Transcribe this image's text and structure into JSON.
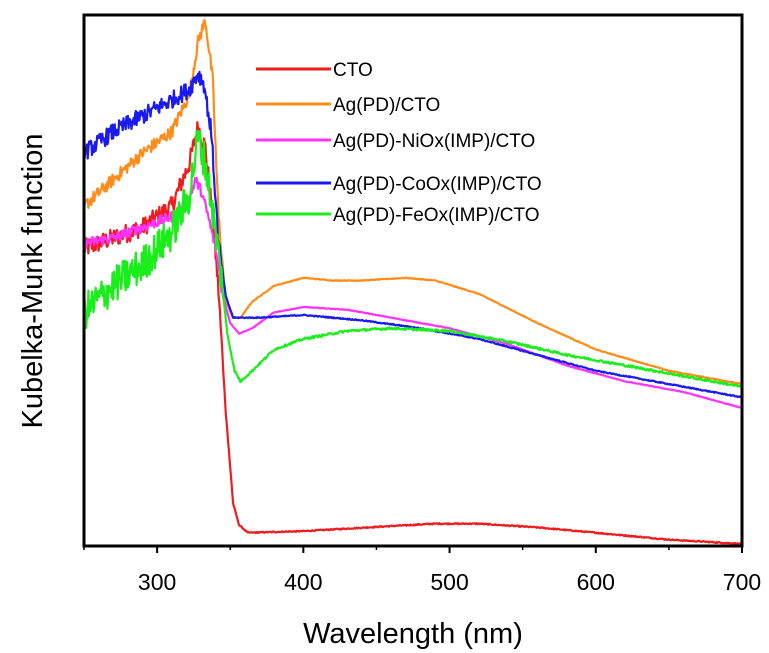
{
  "chart_data": {
    "type": "line",
    "title": "",
    "xlabel": "Wavelength (nm)",
    "ylabel": "Kubelka-Munk function",
    "xlim": [
      250,
      700
    ],
    "ylim": [
      0,
      1
    ],
    "x_ticks": [
      300,
      400,
      500,
      600,
      700
    ],
    "x_tick_labels": [
      "300",
      "400",
      "500",
      "600",
      "700"
    ],
    "y_tick_labels_shown": false,
    "grid": false,
    "legend_position": "top-right",
    "series": [
      {
        "name": "CTO",
        "color": "#ee1c1c",
        "noise": 0.018,
        "points": [
          [
            250,
            0.56
          ],
          [
            270,
            0.58
          ],
          [
            290,
            0.6
          ],
          [
            310,
            0.64
          ],
          [
            322,
            0.72
          ],
          [
            328,
            0.79
          ],
          [
            333,
            0.75
          ],
          [
            338,
            0.62
          ],
          [
            342,
            0.48
          ],
          [
            347,
            0.25
          ],
          [
            352,
            0.08
          ],
          [
            356,
            0.04
          ],
          [
            362,
            0.025
          ],
          [
            400,
            0.028
          ],
          [
            450,
            0.036
          ],
          [
            490,
            0.042
          ],
          [
            520,
            0.042
          ],
          [
            560,
            0.035
          ],
          [
            600,
            0.025
          ],
          [
            650,
            0.012
          ],
          [
            700,
            0.004
          ]
        ]
      },
      {
        "name": "Ag(PD)/CTO",
        "color": "#ff8c1a",
        "noise": 0.012,
        "points": [
          [
            250,
            0.64
          ],
          [
            270,
            0.69
          ],
          [
            290,
            0.74
          ],
          [
            310,
            0.78
          ],
          [
            322,
            0.85
          ],
          [
            328,
            0.95
          ],
          [
            333,
            0.99
          ],
          [
            338,
            0.88
          ],
          [
            342,
            0.62
          ],
          [
            347,
            0.46
          ],
          [
            352,
            0.43
          ],
          [
            357,
            0.43
          ],
          [
            365,
            0.46
          ],
          [
            380,
            0.49
          ],
          [
            400,
            0.505
          ],
          [
            420,
            0.5
          ],
          [
            440,
            0.5
          ],
          [
            470,
            0.505
          ],
          [
            490,
            0.5
          ],
          [
            520,
            0.475
          ],
          [
            560,
            0.42
          ],
          [
            600,
            0.37
          ],
          [
            650,
            0.33
          ],
          [
            700,
            0.305
          ]
        ]
      },
      {
        "name": "Ag(PD)-NiOx(IMP)/CTO",
        "color": "#ff33ff",
        "noise": 0.01,
        "points": [
          [
            250,
            0.57
          ],
          [
            270,
            0.58
          ],
          [
            290,
            0.6
          ],
          [
            310,
            0.62
          ],
          [
            322,
            0.65
          ],
          [
            326,
            0.69
          ],
          [
            330,
            0.67
          ],
          [
            335,
            0.62
          ],
          [
            340,
            0.56
          ],
          [
            345,
            0.47
          ],
          [
            350,
            0.42
          ],
          [
            356,
            0.4
          ],
          [
            365,
            0.41
          ],
          [
            380,
            0.44
          ],
          [
            400,
            0.45
          ],
          [
            430,
            0.445
          ],
          [
            460,
            0.43
          ],
          [
            500,
            0.41
          ],
          [
            540,
            0.38
          ],
          [
            580,
            0.34
          ],
          [
            620,
            0.31
          ],
          [
            660,
            0.29
          ],
          [
            700,
            0.26
          ]
        ]
      },
      {
        "name": "Ag(PD)-CoOx(IMP)/CTO",
        "color": "#1a1aee",
        "noise": 0.016,
        "points": [
          [
            250,
            0.74
          ],
          [
            270,
            0.78
          ],
          [
            290,
            0.81
          ],
          [
            310,
            0.84
          ],
          [
            322,
            0.86
          ],
          [
            328,
            0.89
          ],
          [
            332,
            0.87
          ],
          [
            337,
            0.78
          ],
          [
            342,
            0.57
          ],
          [
            347,
            0.47
          ],
          [
            352,
            0.43
          ],
          [
            358,
            0.43
          ],
          [
            370,
            0.43
          ],
          [
            400,
            0.435
          ],
          [
            440,
            0.425
          ],
          [
            480,
            0.41
          ],
          [
            520,
            0.39
          ],
          [
            560,
            0.36
          ],
          [
            600,
            0.33
          ],
          [
            650,
            0.305
          ],
          [
            700,
            0.28
          ]
        ]
      },
      {
        "name": "Ag(PD)-FeOx(IMP)/CTO",
        "color": "#1aee1a",
        "noise": 0.035,
        "points": [
          [
            250,
            0.44
          ],
          [
            270,
            0.49
          ],
          [
            290,
            0.53
          ],
          [
            310,
            0.59
          ],
          [
            322,
            0.66
          ],
          [
            328,
            0.77
          ],
          [
            333,
            0.72
          ],
          [
            338,
            0.63
          ],
          [
            343,
            0.53
          ],
          [
            348,
            0.4
          ],
          [
            353,
            0.33
          ],
          [
            357,
            0.31
          ],
          [
            365,
            0.33
          ],
          [
            380,
            0.37
          ],
          [
            400,
            0.39
          ],
          [
            430,
            0.405
          ],
          [
            460,
            0.41
          ],
          [
            500,
            0.405
          ],
          [
            540,
            0.385
          ],
          [
            580,
            0.36
          ],
          [
            620,
            0.34
          ],
          [
            660,
            0.32
          ],
          [
            700,
            0.3
          ]
        ]
      }
    ]
  }
}
